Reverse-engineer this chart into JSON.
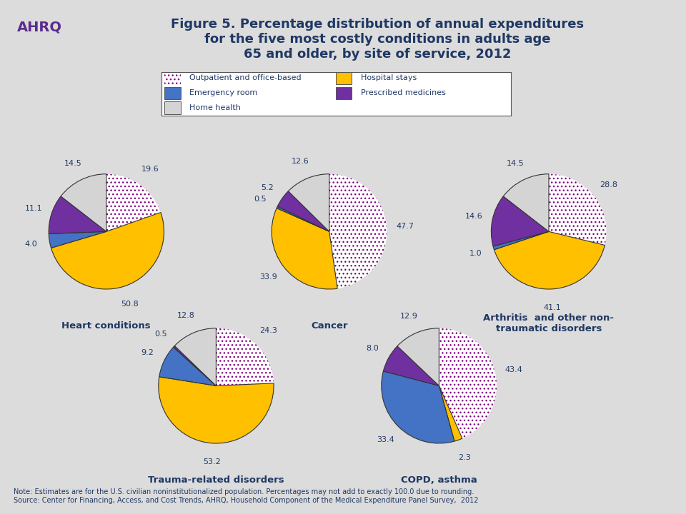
{
  "title": "Figure 5. Percentage distribution of annual expenditures\nfor the five most costly conditions in adults age\n65 and older, by site of service, 2012",
  "title_color": "#1F3864",
  "bg_color": "#DCDCDC",
  "note": "Note: Estimates are for the U.S. civilian noninstitutionalized population. Percentages may not add to exactly 100.0 due to rounding.\nSource: Center for Financing, Access, and Cost Trends, AHRQ, Household Component of the Medical Expenditure Panel Survey,  2012",
  "colors_order": [
    "#FFFFFF",
    "#FFC000",
    "#4472C4",
    "#7030A0",
    "#D4D4D4"
  ],
  "hatch_order": [
    "...",
    "",
    "",
    "",
    ""
  ],
  "outpatient_fg": "#9B30FF",
  "legend_items": [
    {
      "label": "Outpatient and office-based",
      "color": "#FFFFFF",
      "hatch": "..."
    },
    {
      "label": "Hospital stays",
      "color": "#FFC000",
      "hatch": ""
    },
    {
      "label": "Emergency room",
      "color": "#4472C4",
      "hatch": ""
    },
    {
      "label": "Prescribed medicines",
      "color": "#7030A0",
      "hatch": ""
    },
    {
      "label": "Home health",
      "color": "#D4D4D4",
      "hatch": ""
    }
  ],
  "charts": [
    {
      "title": "Heart conditions",
      "values": [
        19.6,
        50.8,
        4.0,
        11.1,
        14.5
      ],
      "labels": [
        "19.6",
        "50.8",
        "4.0",
        "11.1",
        "14.5"
      ],
      "startangle": 90
    },
    {
      "title": "Cancer",
      "values": [
        47.7,
        33.9,
        0.5,
        5.2,
        12.6
      ],
      "labels": [
        "47.7",
        "33.9",
        "0.5",
        "5.2",
        "12.6"
      ],
      "startangle": 90
    },
    {
      "title": "Arthritis  and other non-\ntraumatic disorders",
      "values": [
        28.8,
        41.1,
        1.0,
        14.6,
        14.5
      ],
      "labels": [
        "28.8",
        "41.1",
        "1.0",
        "14.6",
        "14.5"
      ],
      "startangle": 90
    },
    {
      "title": "Trauma-related disorders",
      "values": [
        24.3,
        53.2,
        9.2,
        0.5,
        12.8
      ],
      "labels": [
        "24.3",
        "53.2",
        "9.2",
        "0.5",
        "12.8"
      ],
      "startangle": 90
    },
    {
      "title": "COPD, asthma",
      "values": [
        43.4,
        2.3,
        33.4,
        8.0,
        12.9
      ],
      "labels": [
        "43.4",
        "2.3",
        "33.4",
        "8.0",
        "12.9"
      ],
      "startangle": 90
    }
  ]
}
